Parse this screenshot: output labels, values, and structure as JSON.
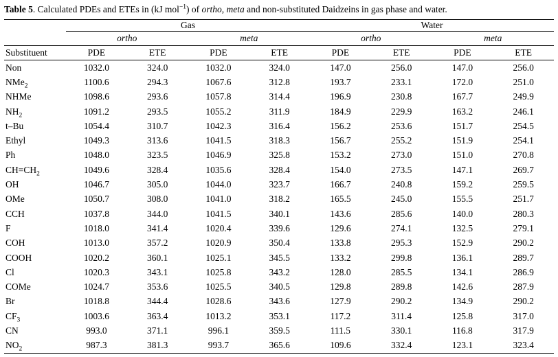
{
  "caption": {
    "label": "Table 5",
    "after_label": ". Calculated PDEs and ETEs in (kJ mol",
    "superscript": "−1",
    "after_sup": ") of ",
    "italic1": "ortho",
    "between_italics": ", ",
    "italic2": "meta",
    "tail": " and non-substituted Daidzeins in gas phase and water."
  },
  "table": {
    "phase_groups": [
      "Gas",
      "Water"
    ],
    "position_groups": [
      "ortho",
      "meta",
      "ortho",
      "meta"
    ],
    "substituent_header": "Substituent",
    "value_headers": [
      "PDE",
      "ETE",
      "PDE",
      "ETE",
      "PDE",
      "ETE",
      "PDE",
      "ETE"
    ],
    "rows": [
      {
        "substituent": "Non",
        "sub": "",
        "values": [
          "1032.0",
          "324.0",
          "1032.0",
          "324.0",
          "147.0",
          "256.0",
          "147.0",
          "256.0"
        ]
      },
      {
        "substituent": "NMe",
        "sub": "2",
        "values": [
          "1100.6",
          "294.3",
          "1067.6",
          "312.8",
          "193.7",
          "233.1",
          "172.0",
          "251.0"
        ]
      },
      {
        "substituent": "NHMe",
        "sub": "",
        "values": [
          "1098.6",
          "293.6",
          "1057.8",
          "314.4",
          "196.9",
          "230.8",
          "167.7",
          "249.9"
        ]
      },
      {
        "substituent": "NH",
        "sub": "2",
        "values": [
          "1091.2",
          "293.5",
          "1055.2",
          "311.9",
          "184.9",
          "229.9",
          "163.2",
          "246.1"
        ]
      },
      {
        "substituent": "t–Bu",
        "sub": "",
        "values": [
          "1054.4",
          "310.7",
          "1042.3",
          "316.4",
          "156.2",
          "253.6",
          "151.7",
          "254.5"
        ]
      },
      {
        "substituent": "Ethyl",
        "sub": "",
        "values": [
          "1049.3",
          "313.6",
          "1041.5",
          "318.3",
          "156.7",
          "255.2",
          "151.9",
          "254.1"
        ]
      },
      {
        "substituent": "Ph",
        "sub": "",
        "values": [
          "1048.0",
          "323.5",
          "1046.9",
          "325.8",
          "153.2",
          "273.0",
          "151.0",
          "270.8"
        ]
      },
      {
        "substituent": "CH=CH",
        "sub": "2",
        "values": [
          "1049.6",
          "328.4",
          "1035.6",
          "328.4",
          "154.0",
          "273.5",
          "147.1",
          "269.7"
        ]
      },
      {
        "substituent": "OH",
        "sub": "",
        "values": [
          "1046.7",
          "305.0",
          "1044.0",
          "323.7",
          "166.7",
          "240.8",
          "159.2",
          "259.5"
        ]
      },
      {
        "substituent": "OMe",
        "sub": "",
        "values": [
          "1050.7",
          "308.0",
          "1041.0",
          "318.2",
          "165.5",
          "245.0",
          "155.5",
          "251.7"
        ]
      },
      {
        "substituent": "CCH",
        "sub": "",
        "values": [
          "1037.8",
          "344.0",
          "1041.5",
          "340.1",
          "143.6",
          "285.6",
          "140.0",
          "280.3"
        ]
      },
      {
        "substituent": "F",
        "sub": "",
        "values": [
          "1018.0",
          "341.4",
          "1020.4",
          "339.6",
          "129.6",
          "274.1",
          "132.5",
          "279.1"
        ]
      },
      {
        "substituent": "COH",
        "sub": "",
        "values": [
          "1013.0",
          "357.2",
          "1020.9",
          "350.4",
          "133.8",
          "295.3",
          "152.9",
          "290.2"
        ]
      },
      {
        "substituent": "COOH",
        "sub": "",
        "values": [
          "1020.2",
          "360.1",
          "1025.1",
          "345.5",
          "133.2",
          "299.8",
          "136.1",
          "289.7"
        ]
      },
      {
        "substituent": "Cl",
        "sub": "",
        "values": [
          "1020.3",
          "343.1",
          "1025.8",
          "343.2",
          "128.0",
          "285.5",
          "134.1",
          "286.9"
        ]
      },
      {
        "substituent": "COMe",
        "sub": "",
        "values": [
          "1024.7",
          "353.6",
          "1025.5",
          "340.5",
          "129.8",
          "289.8",
          "142.6",
          "287.9"
        ]
      },
      {
        "substituent": "Br",
        "sub": "",
        "values": [
          "1018.8",
          "344.4",
          "1028.6",
          "343.6",
          "127.9",
          "290.2",
          "134.9",
          "290.2"
        ]
      },
      {
        "substituent": "CF",
        "sub": "3",
        "values": [
          "1003.6",
          "363.4",
          "1013.2",
          "353.1",
          "117.2",
          "311.4",
          "125.8",
          "317.0"
        ]
      },
      {
        "substituent": "CN",
        "sub": "",
        "values": [
          "993.0",
          "371.1",
          "996.1",
          "359.5",
          "111.5",
          "330.1",
          "116.8",
          "317.9"
        ]
      },
      {
        "substituent": "NO",
        "sub": "2",
        "values": [
          "987.3",
          "381.3",
          "993.7",
          "365.6",
          "109.6",
          "332.4",
          "123.1",
          "323.4"
        ]
      }
    ]
  }
}
